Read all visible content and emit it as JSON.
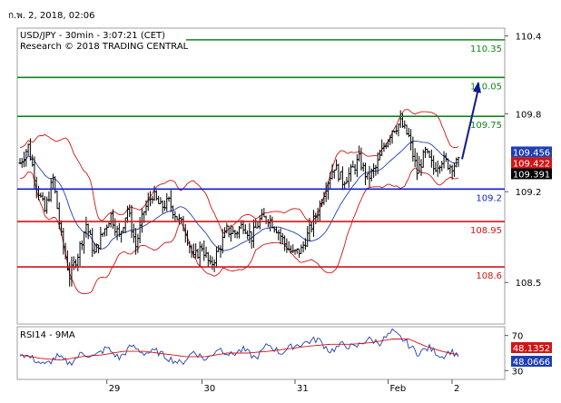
{
  "header": {
    "timestamp": "ก.พ. 2, 2018, 02:06"
  },
  "chart_data": [
    {
      "type": "candlestick",
      "title": "USD/JPY - 30min - 3:07:21 (CET)",
      "subtitle": "Research © 2018 TRADING CENTRAL",
      "ylim": [
        108.18,
        110.46
      ],
      "y_ticks": [
        110.4,
        109.8,
        109.2,
        108.5
      ],
      "x_ticks": [
        "29",
        "30",
        "31",
        "Feb",
        "2"
      ],
      "grid": false,
      "last_price": 109.391,
      "price_flags": [
        {
          "label": "109.456",
          "value": 109.456,
          "color": "#1f3fb0"
        },
        {
          "label": "109.422",
          "value": 109.422,
          "color": "#d01616"
        },
        {
          "label": "109.391",
          "value": 109.391,
          "color": "#000000"
        }
      ],
      "levels": [
        {
          "label": "110.35",
          "value": 110.37,
          "color": "#11851b"
        },
        {
          "label": "110.05",
          "value": 110.08,
          "color": "#11851b"
        },
        {
          "label": "109.75",
          "value": 109.78,
          "color": "#11851b"
        },
        {
          "label": "109.2",
          "value": 109.22,
          "color": "#0d1fcf"
        },
        {
          "label": "108.95",
          "value": 108.97,
          "color": "#d01616"
        },
        {
          "label": "108.6",
          "value": 108.62,
          "color": "#d01616"
        }
      ],
      "price_anchors": [
        [
          0,
          109.42
        ],
        [
          4,
          109.55
        ],
        [
          8,
          109.25
        ],
        [
          12,
          109.05
        ],
        [
          16,
          109.3
        ],
        [
          20,
          108.85
        ],
        [
          24,
          108.55
        ],
        [
          28,
          108.72
        ],
        [
          32,
          108.95
        ],
        [
          36,
          108.72
        ],
        [
          40,
          108.88
        ],
        [
          44,
          109.02
        ],
        [
          48,
          108.85
        ],
        [
          52,
          109.07
        ],
        [
          56,
          108.78
        ],
        [
          60,
          109.05
        ],
        [
          64,
          109.18
        ],
        [
          68,
          109.08
        ],
        [
          72,
          109.12
        ],
        [
          76,
          109.0
        ],
        [
          80,
          108.9
        ],
        [
          84,
          108.68
        ],
        [
          88,
          108.78
        ],
        [
          92,
          108.62
        ],
        [
          96,
          108.75
        ],
        [
          100,
          108.9
        ],
        [
          104,
          108.88
        ],
        [
          108,
          108.95
        ],
        [
          112,
          108.85
        ],
        [
          116,
          108.98
        ],
        [
          120,
          109.0
        ],
        [
          124,
          108.92
        ],
        [
          128,
          108.8
        ],
        [
          132,
          108.72
        ],
        [
          136,
          108.75
        ],
        [
          140,
          108.9
        ],
        [
          144,
          109.05
        ],
        [
          148,
          109.25
        ],
        [
          152,
          109.4
        ],
        [
          156,
          109.28
        ],
        [
          160,
          109.35
        ],
        [
          164,
          109.45
        ],
        [
          168,
          109.3
        ],
        [
          172,
          109.38
        ],
        [
          176,
          109.55
        ],
        [
          180,
          109.68
        ],
        [
          184,
          109.73
        ],
        [
          188,
          109.62
        ],
        [
          192,
          109.35
        ],
        [
          196,
          109.5
        ],
        [
          200,
          109.38
        ],
        [
          204,
          109.45
        ],
        [
          208,
          109.4
        ],
        [
          212,
          109.42
        ]
      ],
      "forecast": {
        "from": 109.45,
        "to": 110.05
      }
    },
    {
      "type": "line",
      "title": "RSI14 - 9MA",
      "ylim": [
        20,
        80
      ],
      "y_ticks": [
        70,
        30
      ],
      "series": [
        {
          "name": "RSI14",
          "color": "#1f3fb0",
          "last_label": "48.0666",
          "anchors": [
            [
              0,
              50
            ],
            [
              6,
              44
            ],
            [
              12,
              36
            ],
            [
              18,
              46
            ],
            [
              24,
              38
            ],
            [
              30,
              50
            ],
            [
              36,
              46
            ],
            [
              42,
              56
            ],
            [
              48,
              44
            ],
            [
              54,
              58
            ],
            [
              60,
              50
            ],
            [
              66,
              52
            ],
            [
              72,
              44
            ],
            [
              78,
              38
            ],
            [
              84,
              52
            ],
            [
              90,
              42
            ],
            [
              96,
              56
            ],
            [
              102,
              48
            ],
            [
              108,
              54
            ],
            [
              114,
              44
            ],
            [
              120,
              60
            ],
            [
              126,
              50
            ],
            [
              132,
              58
            ],
            [
              138,
              62
            ],
            [
              144,
              66
            ],
            [
              150,
              52
            ],
            [
              156,
              60
            ],
            [
              162,
              56
            ],
            [
              168,
              66
            ],
            [
              174,
              62
            ],
            [
              180,
              74
            ],
            [
              186,
              64
            ],
            [
              192,
              50
            ],
            [
              198,
              56
            ],
            [
              204,
              46
            ],
            [
              208,
              52
            ],
            [
              212,
              48
            ]
          ]
        },
        {
          "name": "9MA",
          "color": "#d01616",
          "last_label": "48.1352",
          "anchors": [
            [
              0,
              48
            ],
            [
              10,
              44
            ],
            [
              20,
              42
            ],
            [
              30,
              46
            ],
            [
              40,
              48
            ],
            [
              50,
              52
            ],
            [
              60,
              52
            ],
            [
              70,
              49
            ],
            [
              80,
              46
            ],
            [
              90,
              46
            ],
            [
              100,
              50
            ],
            [
              110,
              50
            ],
            [
              120,
              52
            ],
            [
              130,
              55
            ],
            [
              140,
              58
            ],
            [
              150,
              60
            ],
            [
              160,
              60
            ],
            [
              170,
              62
            ],
            [
              180,
              66
            ],
            [
              188,
              66
            ],
            [
              196,
              58
            ],
            [
              204,
              52
            ],
            [
              212,
              48
            ]
          ]
        }
      ]
    }
  ]
}
